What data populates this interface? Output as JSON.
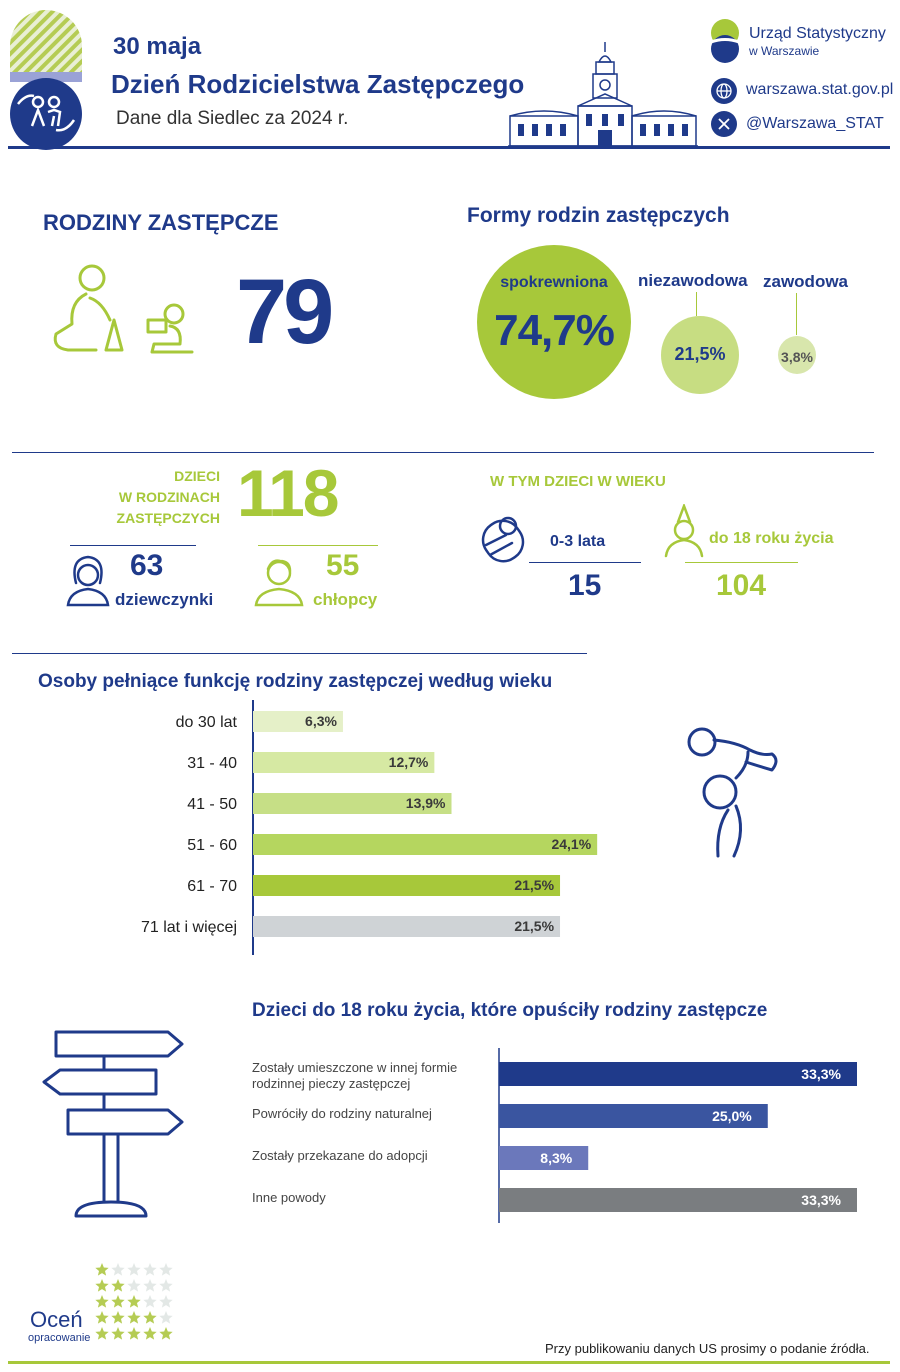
{
  "header": {
    "date": "30 maja",
    "title": "Dzień Rodzicielstwa Zastępczego",
    "subtitle": "Dane dla Siedlec za 2024 r.",
    "org_line1": "Urząd Statystyczny",
    "org_line2": "w Warszawie",
    "website": "warszawa.stat.gov.pl",
    "social": "@Warszawa_STAT"
  },
  "families": {
    "heading": "RODZINY ZASTĘPCZE",
    "count": "79"
  },
  "forms": {
    "heading": "Formy rodzin zastępczych",
    "items": [
      {
        "label": "spokrewniona",
        "value": "74,7%"
      },
      {
        "label": "niezawodowa",
        "value": "21,5%"
      },
      {
        "label": "zawodowa",
        "value": "3,8%"
      }
    ]
  },
  "children": {
    "heading_line1": "DZIECI",
    "heading_line2": "W RODZINACH",
    "heading_line3": "ZASTĘPCZYCH",
    "total": "118",
    "girls_count": "63",
    "girls_label": "dziewczynki",
    "boys_count": "55",
    "boys_label": "chłopcy"
  },
  "age_children": {
    "heading": "W TYM DZIECI W WIEKU",
    "group1_label": "0-3 lata",
    "group1_value": "15",
    "group2_label": "do 18 roku życia",
    "group2_value": "104"
  },
  "colors": {
    "navy": "#1f3a8a",
    "green": "#a7c83a",
    "grey": "#7a7d80"
  },
  "chart_data": [
    {
      "type": "bar",
      "title": "Osoby pełniące funkcję rodziny  zastępczej według wieku",
      "orientation": "horizontal",
      "categories": [
        "do 30 lat",
        "31 - 40",
        "41 - 50",
        "51 - 60",
        "61 - 70",
        "71 lat i więcej"
      ],
      "values": [
        6.3,
        12.7,
        13.9,
        24.1,
        21.5,
        21.5
      ],
      "value_labels": [
        "6,3%",
        "12,7%",
        "13,9%",
        "24,1%",
        "21,5%",
        "21,5%"
      ],
      "colors": [
        "#e5f0c8",
        "#d6e9a3",
        "#c6df86",
        "#b5d65f",
        "#a7c83a",
        "#cfd3d6"
      ],
      "xlim": [
        0,
        28.5
      ]
    },
    {
      "type": "bar",
      "title": "Dzieci do 18 roku życia, które opuściły rodziny zastępcze",
      "orientation": "horizontal",
      "categories": [
        "Zostały umieszczone w innej formie rodzinnej pieczy zastępczej",
        "Powróciły do rodziny naturalnej",
        "Zostały przekazane do adopcji",
        "Inne powody"
      ],
      "category_lines": [
        [
          "Zostały umieszczone w innej formie",
          "rodzinnej pieczy zastępczej"
        ],
        [
          "Powróciły do rodziny naturalnej"
        ],
        [
          "Zostały przekazane do adopcji"
        ],
        [
          "Inne powody"
        ]
      ],
      "values": [
        33.3,
        25.0,
        8.3,
        33.3
      ],
      "value_labels": [
        "33,3%",
        "25,0%",
        "8,3%",
        "33,3%"
      ],
      "colors": [
        "#1f3a8a",
        "#3a55a0",
        "#6b78bb",
        "#7a7d80"
      ],
      "xlim": [
        0,
        33.3
      ]
    }
  ],
  "rating": {
    "label": "Oceń",
    "sublabel": "opracowanie"
  },
  "footer": {
    "note": "Przy publikowaniu danych US prosimy o podanie źródła."
  }
}
